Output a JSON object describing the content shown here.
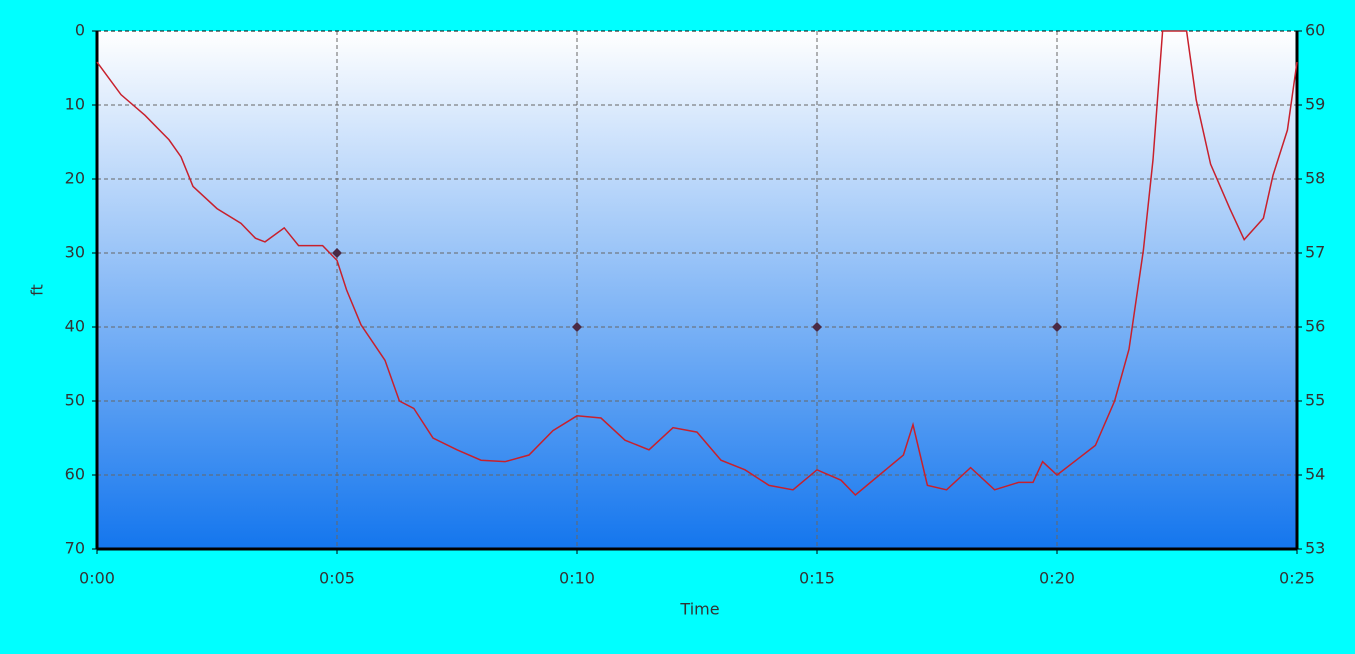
{
  "chart_data": {
    "type": "line",
    "x_label": "Time",
    "y_label": "ft",
    "xlim": [
      0,
      25
    ],
    "xticks": [
      {
        "value": 0,
        "label": "0:00"
      },
      {
        "value": 5,
        "label": "0:05"
      },
      {
        "value": 10,
        "label": "0:10"
      },
      {
        "value": 15,
        "label": "0:15"
      },
      {
        "value": 20,
        "label": "0:20"
      },
      {
        "value": 25,
        "label": "0:25"
      }
    ],
    "ylim": [
      0,
      70
    ],
    "y_inverted": true,
    "yticks": [
      0,
      10,
      20,
      30,
      40,
      50,
      60,
      70
    ],
    "y2lim": [
      53,
      60
    ],
    "y2ticks": [
      53,
      54,
      55,
      56,
      57,
      58,
      59,
      60
    ],
    "grid": true,
    "series": [
      {
        "color": "#c8202c",
        "marker": false,
        "x": [
          0,
          0.5,
          1.0,
          1.5,
          1.75,
          2.0,
          2.5,
          3.0,
          3.3,
          3.5,
          3.9,
          4.2,
          4.7,
          5.0,
          5.2,
          5.5,
          6.0,
          6.3,
          6.6,
          7.0,
          7.5,
          8.0,
          8.5,
          9.0,
          9.5,
          10.0,
          10.5,
          11.0,
          11.5,
          12.0,
          12.5,
          13.0,
          13.5,
          14.0,
          14.5,
          15.0,
          15.5,
          15.8,
          16.3,
          16.8,
          17.0,
          17.3,
          17.7,
          18.2,
          18.7,
          19.2,
          19.5,
          19.7,
          20.0,
          20.4,
          20.8,
          21.2,
          21.5,
          21.8,
          22.0,
          22.2,
          22.7,
          22.9,
          23.2,
          23.6,
          23.9,
          24.3,
          24.5,
          24.8,
          25.0
        ],
        "values": [
          4.2,
          8.6,
          11.4,
          14.7,
          17,
          21,
          24,
          26,
          28,
          28.5,
          26.6,
          29,
          29,
          31,
          35,
          39.7,
          44.5,
          50,
          51,
          55,
          56.6,
          58,
          58.2,
          57.3,
          54,
          52,
          52.3,
          55.3,
          56.6,
          53.6,
          54.2,
          58,
          59.3,
          61.4,
          62,
          59.3,
          60.7,
          62.7,
          60,
          57.3,
          53.2,
          61.4,
          62,
          59,
          62,
          61,
          61,
          58.2,
          60,
          58,
          56,
          50,
          43,
          29.6,
          17.4,
          0,
          0,
          9.3,
          18,
          24,
          28.2,
          25.3,
          19.5,
          13.4,
          4.2
        ]
      },
      {
        "color": "#4a2a45",
        "marker": true,
        "axis": "y2",
        "x": [
          5,
          10,
          15,
          20
        ],
        "values": [
          57,
          56,
          56,
          56
        ]
      }
    ]
  }
}
